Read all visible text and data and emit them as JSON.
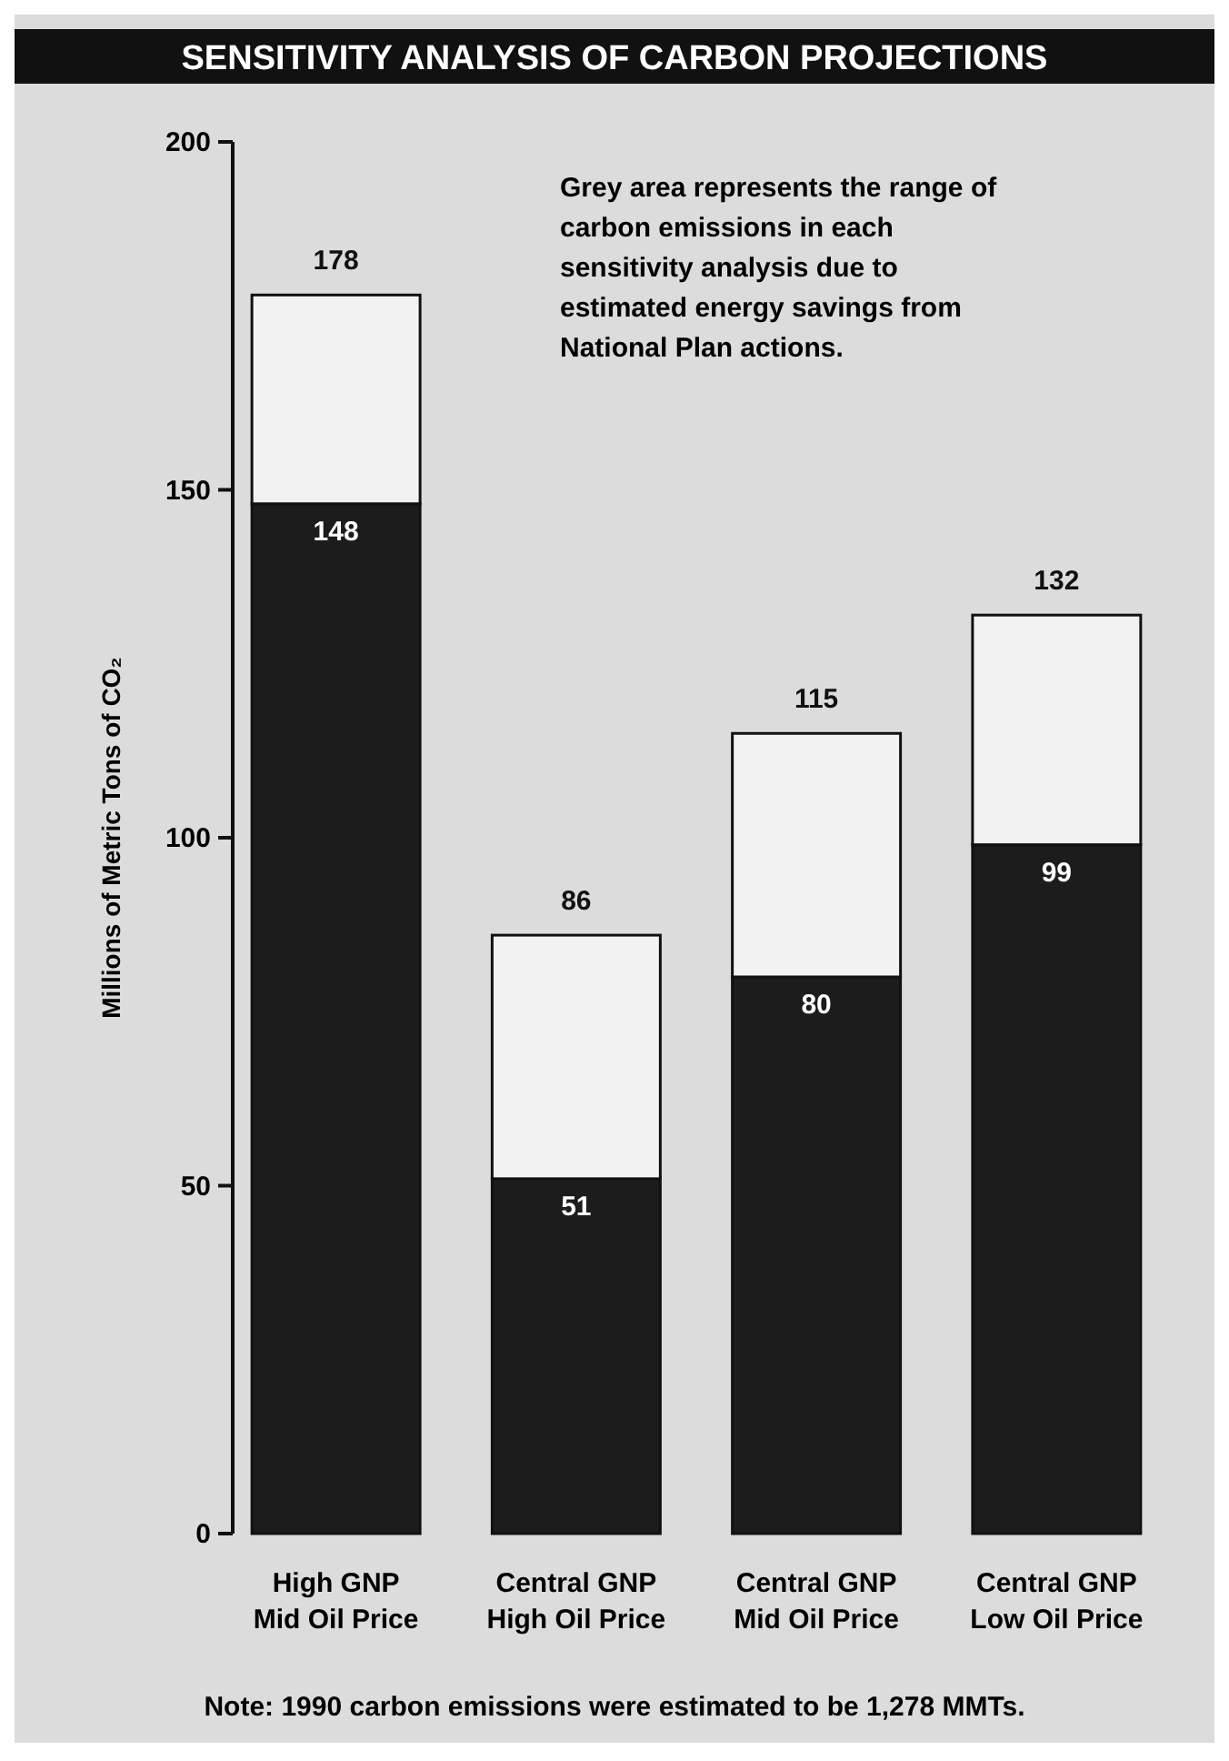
{
  "chart_data": {
    "type": "bar",
    "title": "SENSITIVITY ANALYSIS OF CARBON PROJECTIONS",
    "ylabel": "Millions of Metric Tons of CO₂",
    "categories": [
      "High GNP\nMid Oil Price",
      "Central GNP\nHigh Oil Price",
      "Central GNP\nMid Oil Price",
      "Central GNP\nLow Oil Price"
    ],
    "stacked": true,
    "series": [
      {
        "color": "#1c1c1c",
        "values": [
          148,
          51,
          80,
          99
        ],
        "value_labels": [
          "148",
          "51",
          "80",
          "99"
        ]
      },
      {
        "color": "#f2f2f2",
        "values": [
          30,
          35,
          35,
          33
        ]
      }
    ],
    "totals": [
      "178",
      "86",
      "115",
      "132"
    ],
    "ylim": [
      0,
      200
    ],
    "yticks": [
      0,
      50,
      100,
      150,
      200
    ],
    "annotations": [
      "Grey area represents the range of\ncarbon emissions in each\nsensitivity analysis due to\nestimated energy savings from\nNational Plan actions.",
      "Note: 1990 carbon emissions were estimated to be 1,278 MMTs."
    ]
  }
}
